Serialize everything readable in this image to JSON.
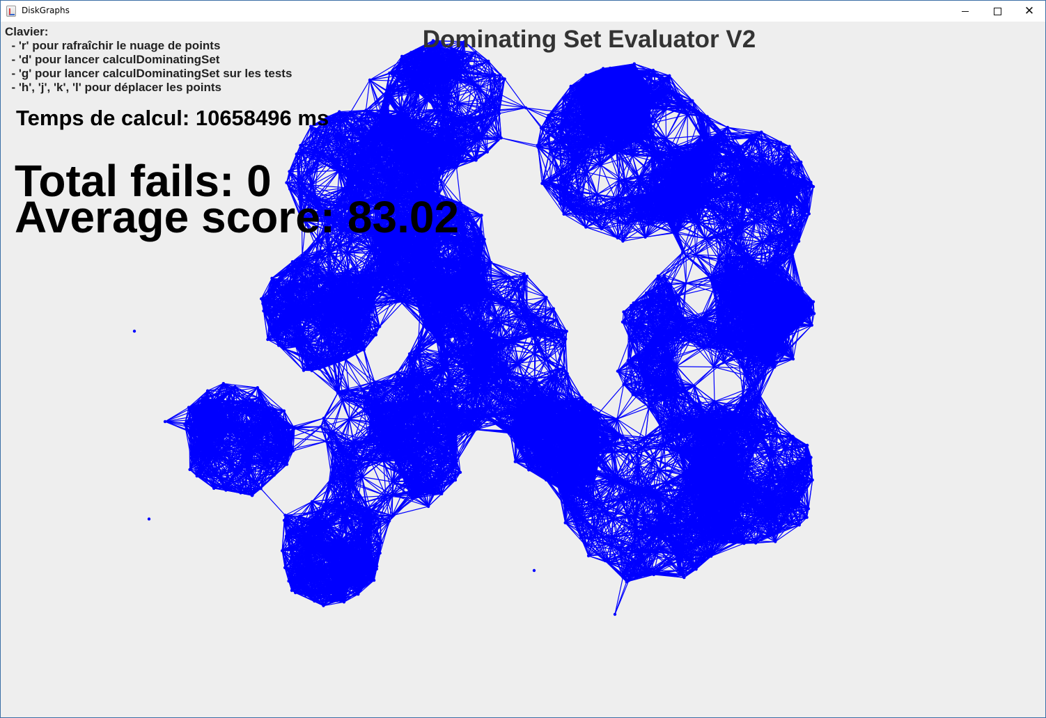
{
  "window": {
    "title": "DiskGraphs"
  },
  "help": {
    "heading": "Clavier:",
    "lines": [
      "  - 'r' pour rafraîchir le nuage de points",
      "  - 'd' pour lancer calculDominatingSet",
      "  - 'g' pour lancer calculDominatingSet sur les tests",
      "  - 'h', 'j', 'k', 'l' pour déplacer les points"
    ]
  },
  "app_title": "Dominating Set Evaluator V2",
  "stats": {
    "time_label": "Temps de calcul: 10658496 ms",
    "fails_label": "Total fails: 0",
    "score_label": "Average score: 83.02"
  },
  "graph": {
    "edge_color": "#0000ff",
    "node_color": "#0000ff"
  }
}
